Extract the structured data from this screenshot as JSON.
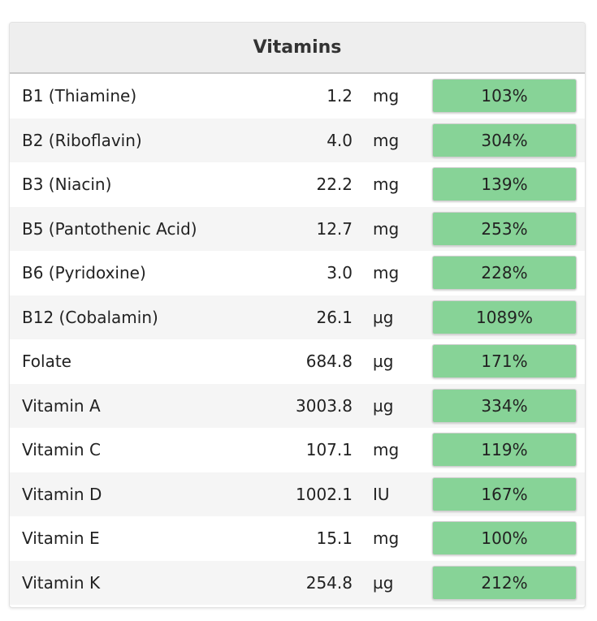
{
  "panel": {
    "title": "Vitamins"
  },
  "colors": {
    "bar_fill": "#87d397",
    "header_bg": "#eeeeee"
  },
  "rows": [
    {
      "name": "B1 (Thiamine)",
      "amount": "1.2",
      "unit": "mg",
      "percent": "103%"
    },
    {
      "name": "B2 (Riboflavin)",
      "amount": "4.0",
      "unit": "mg",
      "percent": "304%"
    },
    {
      "name": "B3 (Niacin)",
      "amount": "22.2",
      "unit": "mg",
      "percent": "139%"
    },
    {
      "name": "B5 (Pantothenic Acid)",
      "amount": "12.7",
      "unit": "mg",
      "percent": "253%"
    },
    {
      "name": "B6 (Pyridoxine)",
      "amount": "3.0",
      "unit": "mg",
      "percent": "228%"
    },
    {
      "name": "B12 (Cobalamin)",
      "amount": "26.1",
      "unit": "µg",
      "percent": "1089%"
    },
    {
      "name": "Folate",
      "amount": "684.8",
      "unit": "µg",
      "percent": "171%"
    },
    {
      "name": "Vitamin A",
      "amount": "3003.8",
      "unit": "µg",
      "percent": "334%"
    },
    {
      "name": "Vitamin C",
      "amount": "107.1",
      "unit": "mg",
      "percent": "119%"
    },
    {
      "name": "Vitamin D",
      "amount": "1002.1",
      "unit": "IU",
      "percent": "167%"
    },
    {
      "name": "Vitamin E",
      "amount": "15.1",
      "unit": "mg",
      "percent": "100%"
    },
    {
      "name": "Vitamin K",
      "amount": "254.8",
      "unit": "µg",
      "percent": "212%"
    }
  ]
}
